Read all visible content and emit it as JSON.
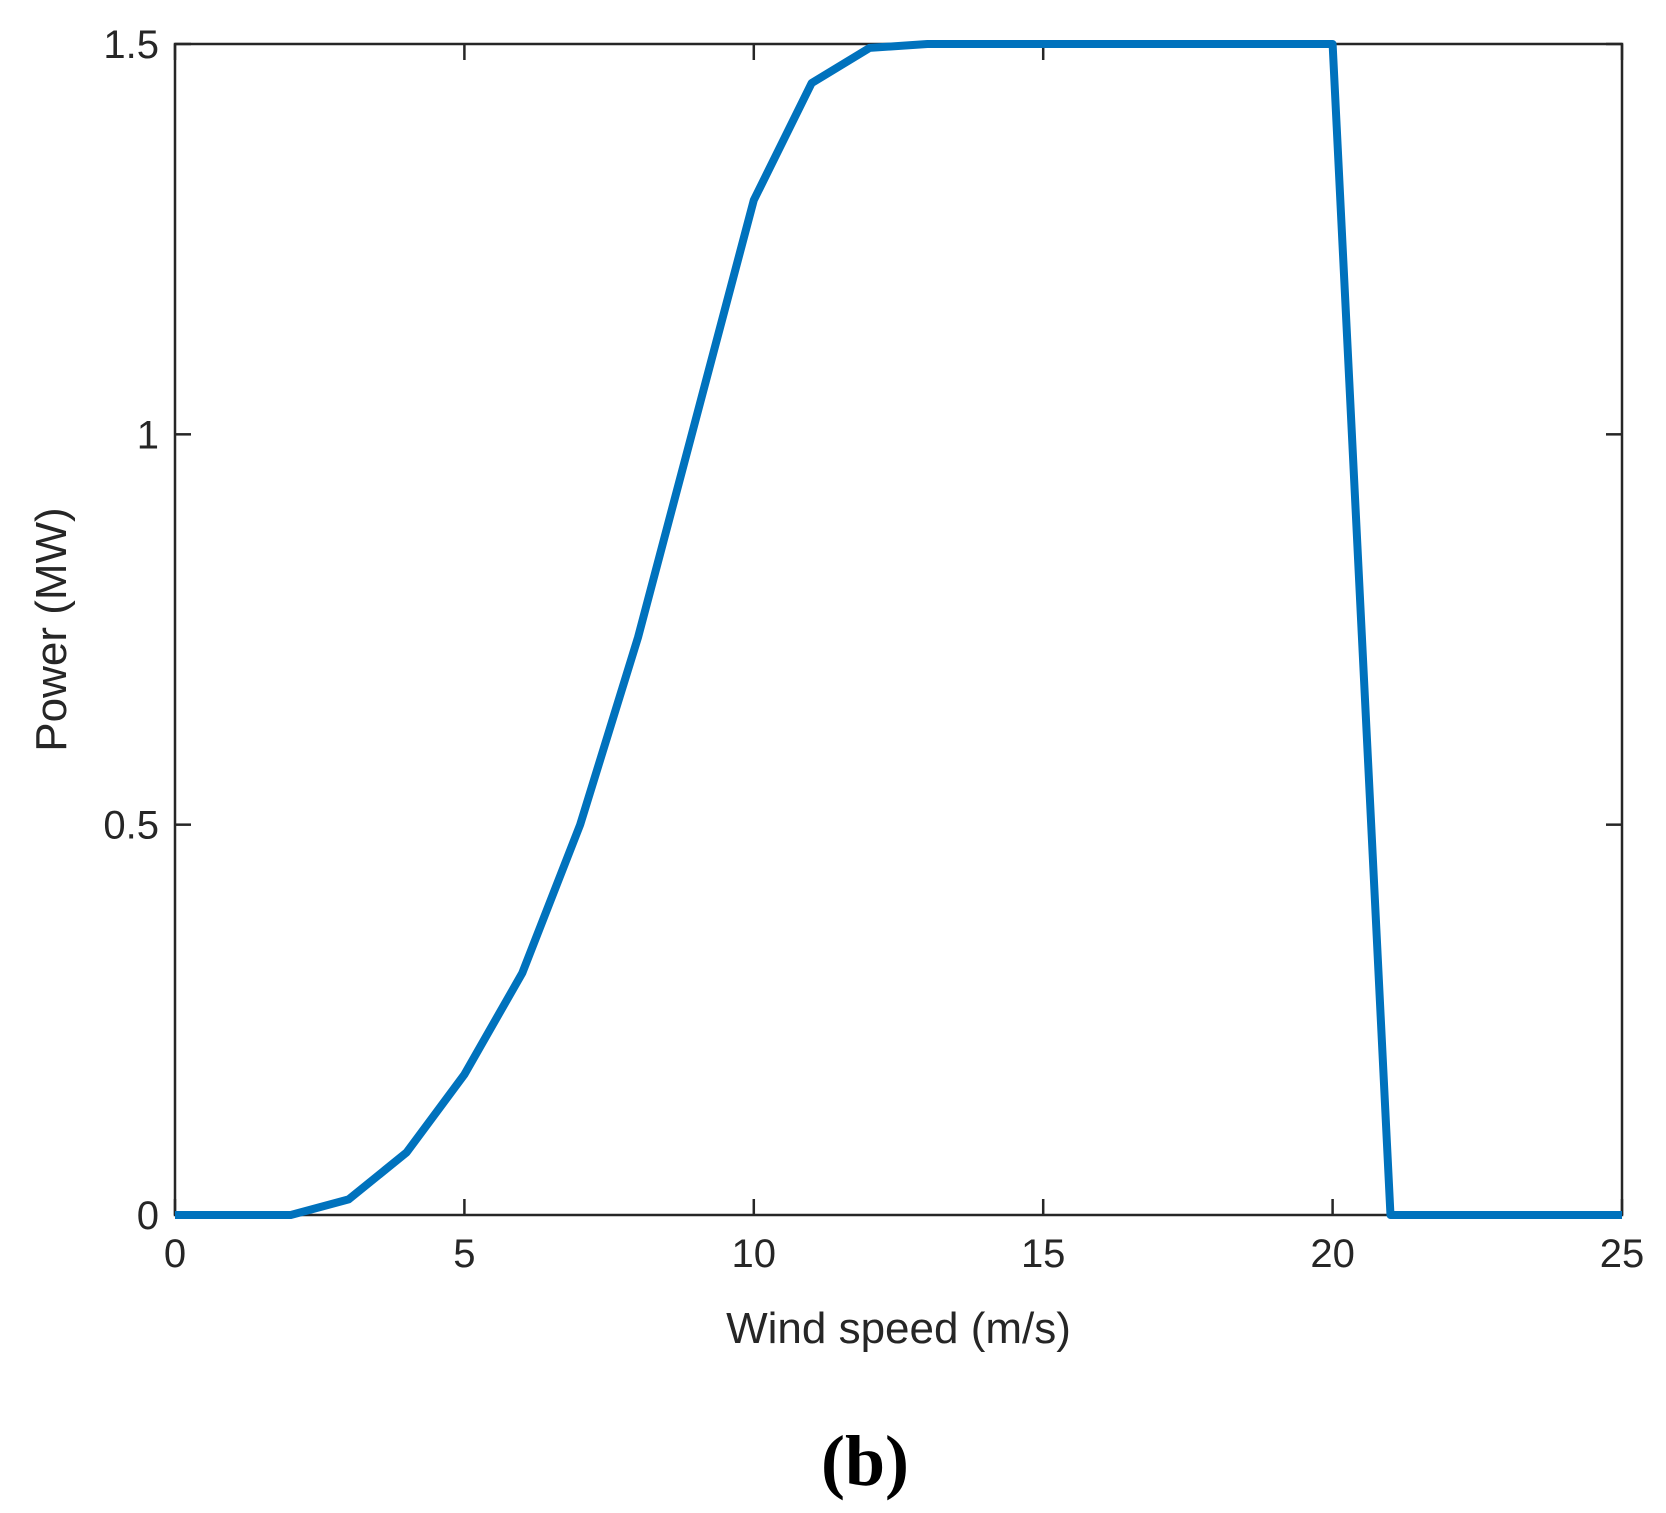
{
  "chart_data": {
    "type": "line",
    "title": "",
    "xlabel": "Wind speed (m/s)",
    "ylabel": "Power (MW)",
    "xlim": [
      0,
      25
    ],
    "ylim": [
      0,
      1.5
    ],
    "xticks": [
      0,
      5,
      10,
      15,
      20,
      25
    ],
    "xtick_labels": [
      "0",
      "5",
      "10",
      "15",
      "20",
      "25"
    ],
    "yticks": [
      0,
      0.5,
      1,
      1.5
    ],
    "ytick_labels": [
      "0",
      "0.5",
      "1",
      "1.5"
    ],
    "grid": false,
    "legend": "none",
    "series": [
      {
        "color": "#0072BD",
        "x": [
          0,
          1,
          2,
          3,
          4,
          5,
          6,
          7,
          8,
          9,
          10,
          11,
          12,
          13,
          14,
          15,
          16,
          17,
          18,
          19,
          20,
          21,
          22,
          23,
          24,
          25
        ],
        "y": [
          0,
          0,
          0,
          0.02,
          0.08,
          0.18,
          0.31,
          0.5,
          0.74,
          1.02,
          1.3,
          1.45,
          1.495,
          1.5,
          1.5,
          1.5,
          1.5,
          1.5,
          1.5,
          1.5,
          1.5,
          0,
          0,
          0,
          0,
          0
        ]
      }
    ]
  },
  "panel_label": "(b)"
}
